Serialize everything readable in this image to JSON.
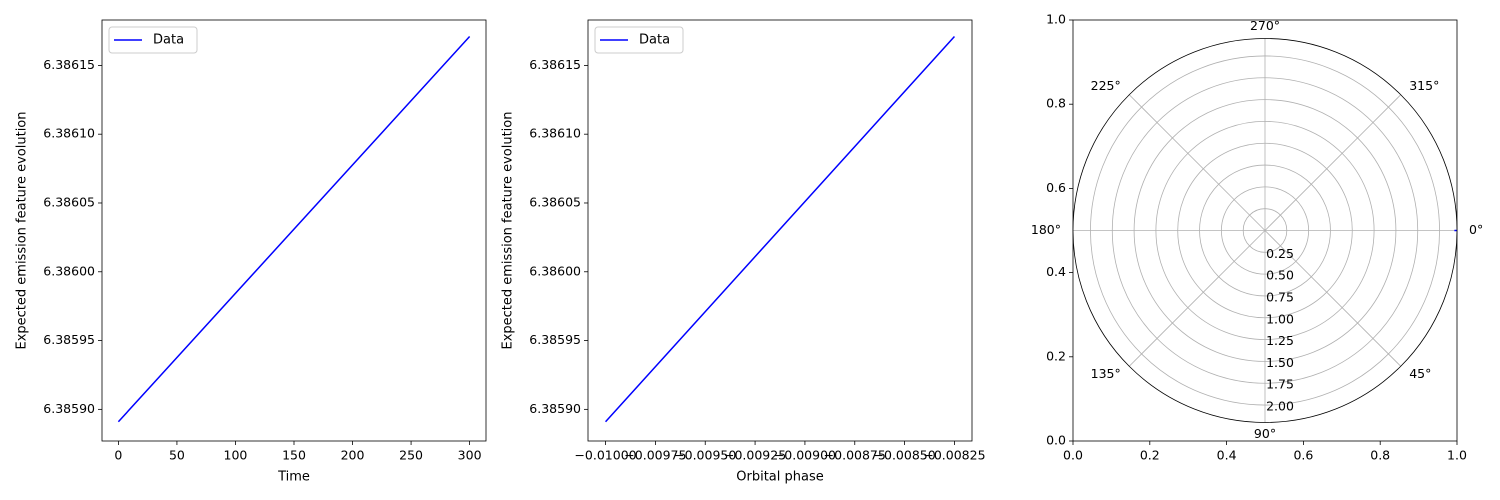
{
  "chart_data": [
    {
      "type": "line",
      "xlabel": "Time",
      "ylabel": "Expected emission feature evolution",
      "xlim": [
        -14,
        314
      ],
      "ylim": [
        6.385877,
        6.386183
      ],
      "xticks": [
        0,
        50,
        100,
        150,
        200,
        250,
        300
      ],
      "xtick_labels": [
        "0",
        "50",
        "100",
        "150",
        "200",
        "250",
        "300"
      ],
      "yticks": [
        6.3859,
        6.38595,
        6.386,
        6.38605,
        6.3861,
        6.38615
      ],
      "ytick_labels": [
        "6.38590",
        "6.38595",
        "6.38600",
        "6.38605",
        "6.38610",
        "6.38615"
      ],
      "series": [
        {
          "name": "Data",
          "color": "#0000ff",
          "x": [
            0,
            300
          ],
          "y": [
            6.385891,
            6.386171
          ]
        }
      ],
      "legend": {
        "position": "upper left",
        "entries": [
          "Data"
        ]
      },
      "grid": false
    },
    {
      "type": "line",
      "xlabel": "Orbital phase",
      "ylabel": "Expected emission feature evolution",
      "xlim": [
        -0.010088,
        -0.008162
      ],
      "ylim": [
        6.385877,
        6.386183
      ],
      "xticks": [
        -0.01,
        -0.00975,
        -0.0095,
        -0.00925,
        -0.009,
        -0.00875,
        -0.0085,
        -0.00825
      ],
      "xtick_labels": [
        "−0.01000",
        "−0.00975",
        "−0.00950",
        "−0.00925",
        "−0.00900",
        "−0.00875",
        "−0.00850",
        "−0.00825"
      ],
      "yticks": [
        6.3859,
        6.38595,
        6.386,
        6.38605,
        6.3861,
        6.38615
      ],
      "ytick_labels": [
        "6.38590",
        "6.38595",
        "6.38600",
        "6.38605",
        "6.38610",
        "6.38615"
      ],
      "series": [
        {
          "name": "Data",
          "color": "#0000ff",
          "x": [
            -0.01,
            -0.00825
          ],
          "y": [
            6.385891,
            6.386171
          ]
        }
      ],
      "legend": {
        "position": "upper left",
        "entries": [
          "Data"
        ]
      },
      "grid": false
    },
    {
      "type": "polar",
      "cartesian_frame": {
        "xlim": [
          0,
          1
        ],
        "ylim": [
          0,
          1
        ],
        "xticks": [
          0,
          0.2,
          0.4,
          0.6,
          0.8,
          1.0
        ],
        "xtick_labels": [
          "0.0",
          "0.2",
          "0.4",
          "0.6",
          "0.8",
          "1.0"
        ],
        "yticks": [
          0,
          0.2,
          0.4,
          0.6,
          0.8,
          1.0
        ],
        "ytick_labels": [
          "0.0",
          "0.2",
          "0.4",
          "0.6",
          "0.8",
          "1.0"
        ]
      },
      "rlim": [
        0,
        2.2
      ],
      "rticks": [
        0.25,
        0.5,
        0.75,
        1.0,
        1.25,
        1.5,
        1.75,
        2.0
      ],
      "rtick_labels": [
        "0.25",
        "0.50",
        "0.75",
        "1.00",
        "1.25",
        "1.50",
        "1.75",
        "2.00"
      ],
      "theta_direction": "clockwise",
      "theta_ticks": [
        0,
        45,
        90,
        135,
        180,
        225,
        270,
        315
      ],
      "theta_labels": [
        "0°",
        "45°",
        "90°",
        "135°",
        "180°",
        "225°",
        "270°",
        "315°"
      ],
      "series": [
        {
          "color": "#0000ff",
          "theta_deg": [
            0,
            0
          ],
          "r": [
            2.17,
            2.2
          ]
        }
      ],
      "grid": true
    }
  ]
}
